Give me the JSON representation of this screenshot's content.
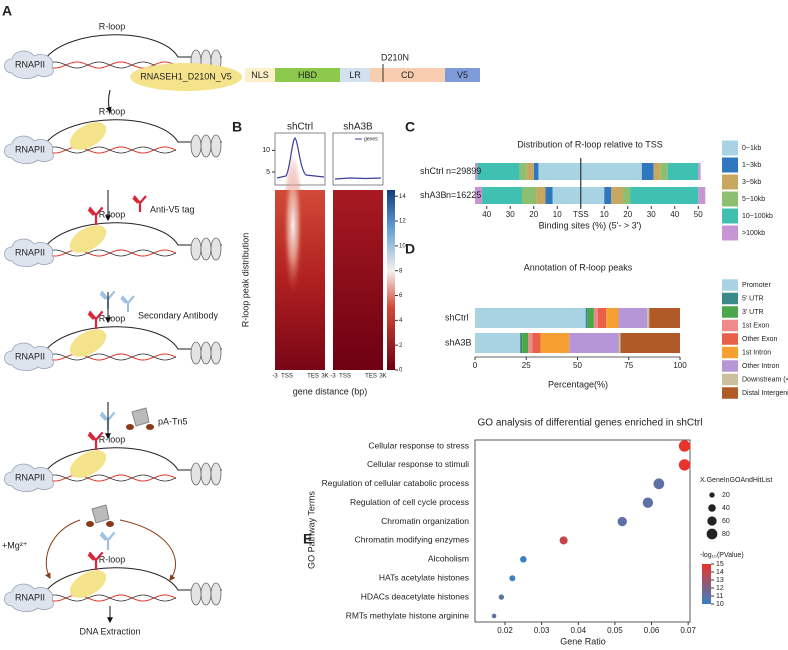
{
  "panel_labels": [
    "A",
    "B",
    "C",
    "D",
    "E"
  ],
  "panel_a": {
    "r_loop": "R-loop",
    "rnapii": "RNAPII",
    "fusion": "RNASEH1_D210N_V5",
    "domains": [
      {
        "name": "NLS",
        "color": "#fdf0c8"
      },
      {
        "name": "HBD",
        "color": "#8cc84b"
      },
      {
        "name": "LR",
        "color": "#d3e0f0"
      },
      {
        "name": "CD",
        "color": "#f9cdb0"
      },
      {
        "name": "V5",
        "color": "#7d9bd8"
      }
    ],
    "mutation": "D210N",
    "anti_v5": "Anti-V5 tag",
    "secondary": "Secondary Antibody",
    "tn5": "pA-Tn5",
    "mg": "+Mg²⁺",
    "extraction": "DNA Extraction"
  },
  "panel_b": {
    "samples": [
      "shCtrl",
      "shA3B"
    ],
    "legend": "genes",
    "profile_ylim": [
      2,
      14
    ],
    "profile_yticks": [
      5,
      10
    ],
    "xticks": [
      "-3",
      "TSS",
      "TES",
      "3K"
    ],
    "colorbar_lim": [
      0,
      14.5
    ],
    "colorbar_ticks": [
      0,
      2,
      4,
      6,
      8,
      10,
      12,
      14
    ],
    "ylabel": "R-loop peak distribution",
    "xlabel": "gene distance (bp)"
  },
  "chart_data": [
    {
      "type": "diverging_bar",
      "title": "Distribution of R-loop relative to TSS",
      "categories": [
        "shCtrl",
        "shA3B"
      ],
      "counts": [
        "n=29899",
        "n=16225"
      ],
      "series": [
        {
          "name": "0~1kb",
          "color": "#a7d3e3",
          "upstream": [
            18,
            12
          ],
          "downstream": [
            26,
            10
          ]
        },
        {
          "name": "1~3kb",
          "color": "#2f78c0",
          "upstream": [
            2,
            3
          ],
          "downstream": [
            5,
            3
          ]
        },
        {
          "name": "3~5kb",
          "color": "#c8a860",
          "upstream": [
            3,
            4
          ],
          "downstream": [
            3,
            5
          ]
        },
        {
          "name": "5~10kb",
          "color": "#8cc070",
          "upstream": [
            3,
            6
          ],
          "downstream": [
            3,
            3
          ]
        },
        {
          "name": "10~100kb",
          "color": "#3fc0b0",
          "upstream": [
            18,
            17
          ],
          "downstream": [
            13,
            29
          ]
        },
        {
          "name": ">100kb",
          "color": "#c794d4",
          "upstream": [
            1,
            3
          ],
          "downstream": [
            1,
            3
          ]
        }
      ],
      "xlim": [
        -45,
        55
      ],
      "xticks": [
        {
          "value": -40,
          "label": "40"
        },
        {
          "value": -30,
          "label": "30"
        },
        {
          "value": -20,
          "label": "20"
        },
        {
          "value": -10,
          "label": "10"
        },
        {
          "value": 0,
          "label": "TSS"
        },
        10,
        20,
        30,
        40,
        50
      ],
      "xlabel": "Binding sites (%) (5'- > 3')"
    },
    {
      "type": "stacked_bar",
      "title": "Annotation of R-loop peaks",
      "categories": [
        "shCtrl",
        "shA3B"
      ],
      "series": [
        {
          "name": "Promoter",
          "color": "#a7d3e3",
          "values": [
            54,
            22
          ]
        },
        {
          "name": "5' UTR",
          "color": "#3a8a8a",
          "values": [
            1,
            1
          ]
        },
        {
          "name": "3' UTR",
          "color": "#4aa84a",
          "values": [
            3,
            3
          ]
        },
        {
          "name": "1st Exon",
          "color": "#f08a8a",
          "values": [
            2,
            2
          ]
        },
        {
          "name": "Other Exon",
          "color": "#e8604a",
          "values": [
            4,
            4
          ]
        },
        {
          "name": "1st Intron",
          "color": "#f5a030",
          "values": [
            6,
            14
          ]
        },
        {
          "name": "Other Intron",
          "color": "#b596d6",
          "values": [
            14,
            24
          ]
        },
        {
          "name": "Downstream (<=300)",
          "color": "#cbbf9e",
          "values": [
            1,
            1
          ]
        },
        {
          "name": "Distal Intergenic",
          "color": "#b05a28",
          "values": [
            15,
            29
          ]
        }
      ],
      "xlim": [
        0,
        100
      ],
      "xticks": [
        0,
        25,
        50,
        75,
        100
      ],
      "xlabel": "Percentage(%)"
    },
    {
      "type": "dot",
      "title": "GO analysis of differential genes enriched in shCtrl",
      "categories": [
        "Cellular response to stress",
        "Cellular response to stimuli",
        "Regulation of cellular catabolic process",
        "Regulation of cell cycle process",
        "Chromatin organization",
        "Chromatin modifying enzymes",
        "Alcoholism",
        "HATs acetylate histones",
        "HDACs deacetylate histones",
        "RMTs methylate histone arginine"
      ],
      "values": [
        0.069,
        0.069,
        0.062,
        0.059,
        0.052,
        0.036,
        0.025,
        0.022,
        0.019,
        0.017
      ],
      "sizes": [
        90,
        90,
        80,
        75,
        60,
        45,
        30,
        25,
        20,
        15
      ],
      "pvalues": [
        15,
        15,
        11,
        11,
        11,
        14,
        10,
        10,
        11,
        11
      ],
      "xlim": [
        0.0118,
        0.0705
      ],
      "xticks": [
        0.02,
        0.03,
        0.04,
        0.05,
        0.06,
        0.07
      ],
      "xlabel": "Gene Ratio",
      "ylabel": "GO Pathway Terms",
      "size_legend": {
        "title": "X.GeneInGOAndHitList",
        "ticks": [
          20,
          40,
          60,
          80
        ]
      },
      "color_legend": {
        "title": "-log₁₀(PValue)",
        "lim": [
          10,
          15
        ],
        "ticks": [
          10,
          11,
          12,
          13,
          14,
          15
        ],
        "colors": [
          "#3a80c5",
          "#e8342a"
        ]
      }
    }
  ]
}
